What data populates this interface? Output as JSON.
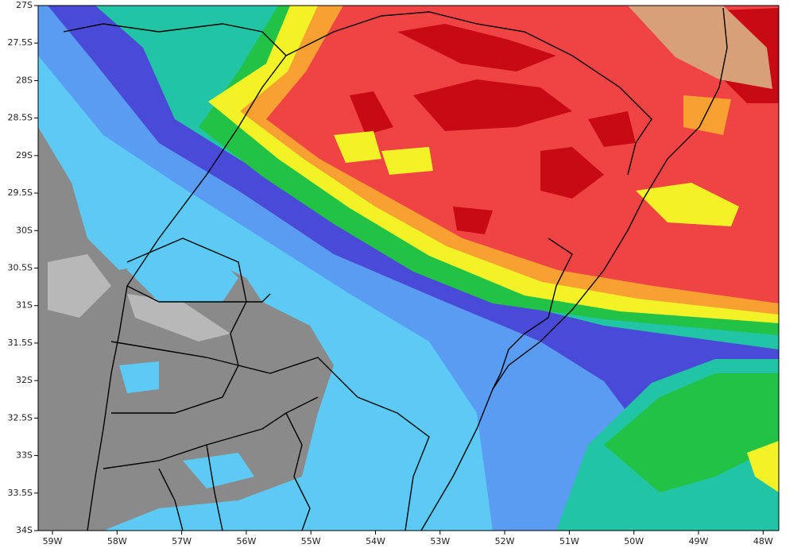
{
  "map": {
    "x_axis": {
      "labels": [
        "59W",
        "58W",
        "57W",
        "56W",
        "55W",
        "54W",
        "53W",
        "52W",
        "51W",
        "50W",
        "49W",
        "48W"
      ]
    },
    "y_axis": {
      "labels": [
        "27S",
        "27.5S",
        "28S",
        "28.5S",
        "29S",
        "29.5S",
        "30S",
        "30.5S",
        "31S",
        "31.5S",
        "32S",
        "32.5S",
        "33S",
        "33.5S",
        "34S"
      ]
    }
  }
}
